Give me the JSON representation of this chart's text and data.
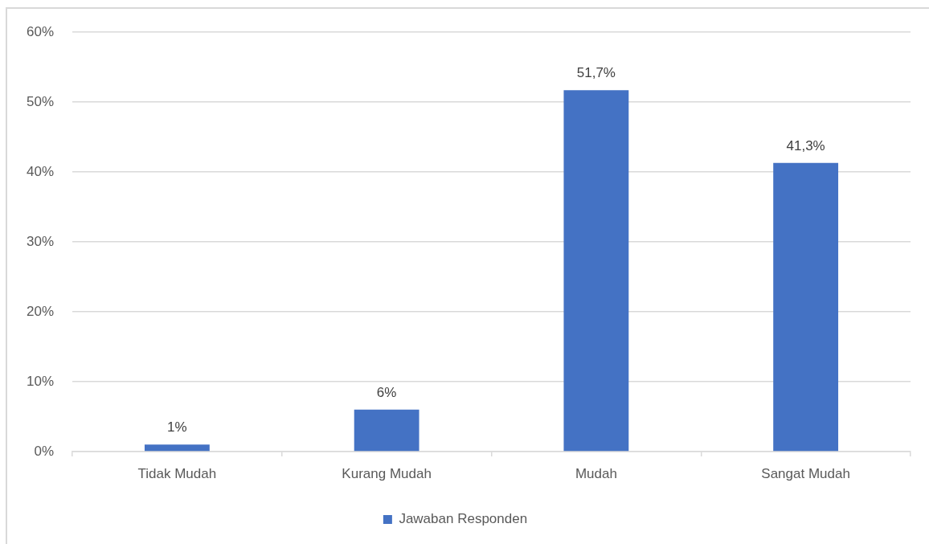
{
  "chart_data": {
    "type": "bar",
    "categories": [
      "Tidak Mudah",
      "Kurang Mudah",
      "Mudah",
      "Sangat Mudah"
    ],
    "series": [
      {
        "name": "Jawaban Responden",
        "color": "#4472c4",
        "values": [
          1,
          6,
          51.7,
          41.3
        ],
        "value_labels": [
          "1%",
          "6%",
          "51,7%",
          "41,3%"
        ]
      }
    ],
    "ylim": [
      0,
      60
    ],
    "yticks": [
      {
        "value": 0,
        "label": "0%"
      },
      {
        "value": 10,
        "label": "10%"
      },
      {
        "value": 20,
        "label": "20%"
      },
      {
        "value": 30,
        "label": "30%"
      },
      {
        "value": 40,
        "label": "40%"
      },
      {
        "value": 50,
        "label": "50%"
      },
      {
        "value": 60,
        "label": "60%"
      }
    ],
    "grid": "y",
    "legend": "bottom"
  }
}
